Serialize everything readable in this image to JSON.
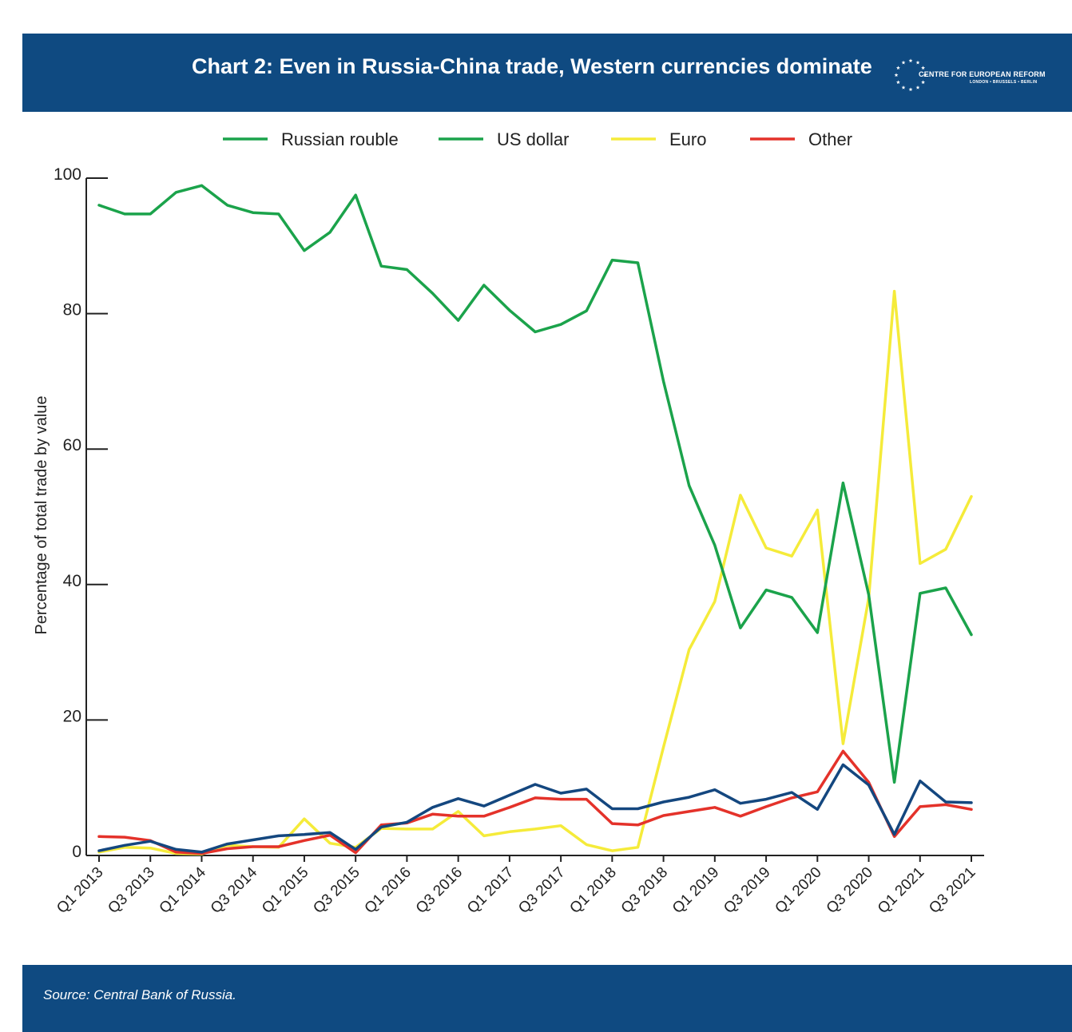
{
  "header": {
    "title": "Chart 2: Even in Russia-China trade, Western currencies dominate",
    "logo": {
      "name": "CENTRE FOR EUROPEAN REFORM",
      "cities": "LONDON • BRUSSELS • BERLIN"
    }
  },
  "footer": {
    "source": "Source: Central Bank of Russia."
  },
  "colors": {
    "brand": "#0f4a81",
    "rouble": "#1ba34b",
    "dollar": "#1ba34b",
    "euro": "#f5eb3a",
    "other": "#e4322a",
    "unlabeled": "#14477f"
  },
  "chart_data": {
    "type": "line",
    "title": "Chart 2: Even in Russia-China trade, Western currencies dominate",
    "xlabel": "",
    "ylabel": "Percentage of total trade by value",
    "ylim": [
      0,
      100
    ],
    "yticks": [
      0,
      20,
      40,
      60,
      80,
      100
    ],
    "x": [
      "Q1 2013",
      "Q2 2013",
      "Q3 2013",
      "Q4 2013",
      "Q1 2014",
      "Q2 2014",
      "Q3 2014",
      "Q4 2014",
      "Q1 2015",
      "Q2 2015",
      "Q3 2015",
      "Q4 2015",
      "Q1 2016",
      "Q2 2016",
      "Q3 2016",
      "Q4 2016",
      "Q1 2017",
      "Q2 2017",
      "Q3 2017",
      "Q4 2017",
      "Q1 2018",
      "Q2 2018",
      "Q3 2018",
      "Q4 2018",
      "Q1 2019",
      "Q2 2019",
      "Q3 2019",
      "Q4 2019",
      "Q1 2020",
      "Q2 2020",
      "Q3 2020",
      "Q4 2020",
      "Q1 2021",
      "Q2 2021",
      "Q3 2021"
    ],
    "xtick_labels": [
      "Q1 2013",
      "Q3 2013",
      "Q1 2014",
      "Q3 2014",
      "Q1 2015",
      "Q3 2015",
      "Q1 2016",
      "Q3 2016",
      "Q1 2017",
      "Q3 2017",
      "Q1 2018",
      "Q3 2018",
      "Q1 2019",
      "Q3 2019",
      "Q1 2020",
      "Q3 2020",
      "Q1 2021",
      "Q3 2021"
    ],
    "legend": [
      {
        "label": "Russian rouble",
        "color_key": "rouble"
      },
      {
        "label": "US dollar",
        "color_key": "dollar"
      },
      {
        "label": "Euro",
        "color_key": "euro"
      },
      {
        "label": "Other",
        "color_key": "other"
      }
    ],
    "series": [
      {
        "name": "US dollar",
        "color_key": "dollar",
        "values": [
          96,
          94.7,
          94.7,
          97.9,
          98.9,
          96,
          94.9,
          94.7,
          89.3,
          92,
          97.5,
          87,
          86.5,
          83,
          79,
          84.2,
          80.5,
          77.3,
          78.4,
          80.4,
          87.9,
          87.5,
          70,
          54.6,
          45.8,
          33.6,
          39.2,
          38.1,
          32.9,
          55,
          38.5,
          10.8,
          38.7,
          39.5,
          32.6
        ]
      },
      {
        "name": "Euro",
        "color_key": "euro",
        "values": [
          0.5,
          1.2,
          1.1,
          0.3,
          0.2,
          1.5,
          1.3,
          1.2,
          5.4,
          1.8,
          1.2,
          4,
          3.9,
          3.9,
          6.5,
          2.9,
          3.5,
          3.9,
          4.4,
          1.6,
          0.7,
          1.2,
          16,
          30.4,
          37.5,
          53.2,
          45.4,
          44.2,
          51,
          16.5,
          38,
          83.3,
          43.1,
          45.2,
          53
        ]
      },
      {
        "name": "Other",
        "color_key": "other",
        "values": [
          2.8,
          2.7,
          2.2,
          0.5,
          0.3,
          1,
          1.3,
          1.3,
          2.2,
          3,
          0.4,
          4.5,
          4.8,
          6.1,
          5.8,
          5.8,
          7.1,
          8.5,
          8.3,
          8.3,
          4.7,
          4.5,
          5.9,
          6.5,
          7.1,
          5.8,
          7.2,
          8.5,
          9.4,
          15.4,
          10.8,
          2.8,
          7.2,
          7.5,
          6.8
        ]
      },
      {
        "name": "Russian rouble",
        "color_key": "unlabeled",
        "values": [
          0.7,
          1.5,
          2.1,
          0.9,
          0.5,
          1.7,
          2.3,
          2.9,
          3.1,
          3.4,
          0.9,
          4.2,
          4.9,
          7.1,
          8.4,
          7.3,
          8.9,
          10.5,
          9.2,
          9.8,
          6.9,
          6.9,
          7.9,
          8.6,
          9.7,
          7.7,
          8.3,
          9.3,
          6.8,
          13.4,
          10.4,
          3.1,
          11,
          7.9,
          7.8
        ]
      }
    ]
  }
}
